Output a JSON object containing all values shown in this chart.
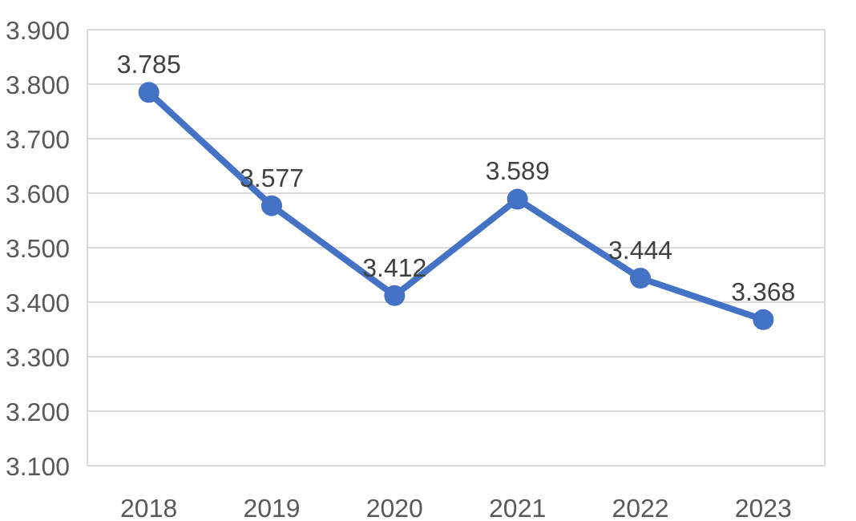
{
  "chart_data": {
    "type": "line",
    "categories": [
      "2018",
      "2019",
      "2020",
      "2021",
      "2022",
      "2023"
    ],
    "series": [
      {
        "color": "#4472c4",
        "values": [
          3.785,
          3.577,
          3.412,
          3.589,
          3.444,
          3.368
        ]
      }
    ],
    "ylim": [
      3.1,
      3.9
    ],
    "yticks": [
      {
        "value": 3.1,
        "label": "3.100"
      },
      {
        "value": 3.2,
        "label": "3.200"
      },
      {
        "value": 3.3,
        "label": "3.300"
      },
      {
        "value": 3.4,
        "label": "3.400"
      },
      {
        "value": 3.5,
        "label": "3.500"
      },
      {
        "value": 3.6,
        "label": "3.600"
      },
      {
        "value": 3.7,
        "label": "3.700"
      },
      {
        "value": 3.8,
        "label": "3.800"
      },
      {
        "value": 3.9,
        "label": "3.900"
      }
    ],
    "grid": "y",
    "marker": "circle",
    "line_style": "solid",
    "data_labels": true
  }
}
